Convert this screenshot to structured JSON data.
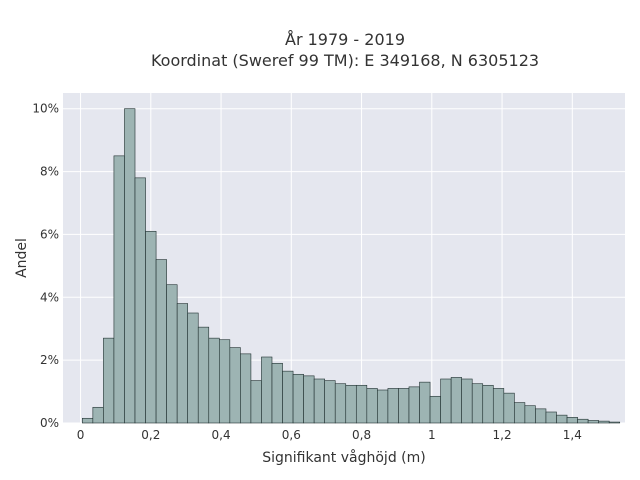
{
  "chart_data": {
    "type": "bar",
    "title": "År 1979 - 2019",
    "subtitle": "Koordinat (Sweref 99 TM): E 349168, N 6305123",
    "xlabel": "Signifikant våghöjd (m)",
    "ylabel": "Andel",
    "xlim": [
      -0.05,
      1.55
    ],
    "ylim": [
      0,
      10.5
    ],
    "x_ticks": [
      {
        "value": 0,
        "label": "0"
      },
      {
        "value": 0.2,
        "label": "0,2"
      },
      {
        "value": 0.4,
        "label": "0,4"
      },
      {
        "value": 0.6,
        "label": "0,6"
      },
      {
        "value": 0.8,
        "label": "0,8"
      },
      {
        "value": 1.0,
        "label": "1"
      },
      {
        "value": 1.2,
        "label": "1,2"
      },
      {
        "value": 1.4,
        "label": "1,4"
      }
    ],
    "y_ticks": [
      {
        "value": 0,
        "label": "0%"
      },
      {
        "value": 2,
        "label": "2%"
      },
      {
        "value": 4,
        "label": "4%"
      },
      {
        "value": 6,
        "label": "6%"
      },
      {
        "value": 8,
        "label": "8%"
      },
      {
        "value": 10,
        "label": "10%"
      }
    ],
    "bin_width": 0.03,
    "bin_start": 0.005,
    "values": [
      0.15,
      0.5,
      2.7,
      8.5,
      10.0,
      7.8,
      6.1,
      5.2,
      4.4,
      3.8,
      3.5,
      3.05,
      2.7,
      2.65,
      2.4,
      2.2,
      1.35,
      2.1,
      1.9,
      1.65,
      1.55,
      1.5,
      1.4,
      1.35,
      1.25,
      1.2,
      1.2,
      1.1,
      1.05,
      1.1,
      1.1,
      1.15,
      1.3,
      0.85,
      1.4,
      1.45,
      1.4,
      1.25,
      1.2,
      1.1,
      0.95,
      0.65,
      0.55,
      0.45,
      0.35,
      0.25,
      0.18,
      0.12,
      0.08,
      0.06,
      0.03
    ],
    "grid": true,
    "colors": {
      "bar_fill": "#9db4b3",
      "bar_stroke": "#1f2f2f",
      "plot_bg": "#e5e7ef",
      "grid": "#ffffff"
    }
  }
}
